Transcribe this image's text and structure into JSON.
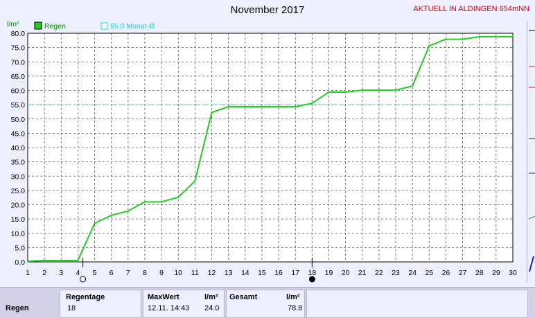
{
  "header": {
    "title": "November 2017",
    "station": "AKTUELL IN ALDINGEN 654mNN"
  },
  "chart_data": {
    "type": "line",
    "title": "November 2017",
    "ylabel": "l/m²",
    "ylim": [
      0,
      80
    ],
    "xlim": [
      1,
      30
    ],
    "grid": true,
    "legend_placement": "top-left",
    "x_ticks": [
      1,
      2,
      3,
      4,
      5,
      6,
      7,
      8,
      9,
      10,
      11,
      12,
      13,
      14,
      15,
      16,
      17,
      18,
      19,
      20,
      21,
      22,
      23,
      24,
      25,
      26,
      27,
      28,
      29,
      30
    ],
    "y_ticks": [
      "0.0",
      "5.0",
      "10.0",
      "15.0",
      "20.0",
      "25.0",
      "30.0",
      "35.0",
      "40.0",
      "45.0",
      "50.0",
      "55.0",
      "60.0",
      "65.0",
      "70.0",
      "75.0",
      "80.0"
    ],
    "series": [
      {
        "name": "Regen",
        "color": "#22cc22",
        "x": [
          1,
          2,
          3,
          4,
          5,
          6,
          7,
          8,
          9,
          10,
          11,
          12,
          13,
          14,
          15,
          16,
          17,
          18,
          19,
          20,
          21,
          22,
          23,
          24,
          25,
          26,
          27,
          28,
          29,
          30
        ],
        "values": [
          0.2,
          0.5,
          0.5,
          0.5,
          13.5,
          16.3,
          17.8,
          21.0,
          21.0,
          22.6,
          28.3,
          52.3,
          54.3,
          54.3,
          54.3,
          54.3,
          54.3,
          55.5,
          59.4,
          59.4,
          60.1,
          60.1,
          60.1,
          61.5,
          75.6,
          77.9,
          77.9,
          78.8,
          78.8,
          78.8
        ]
      }
    ],
    "reference_line": {
      "label": "55.0 Monat-Ø",
      "value": 55.0,
      "color": "#22dddd"
    },
    "moon_phases": [
      {
        "day": 4.3,
        "phase": "full"
      },
      {
        "day": 18.0,
        "phase": "new"
      }
    ]
  },
  "stats": {
    "row_label": "Regen",
    "regentage_label": "Regentage",
    "regentage_value": "18",
    "maxwert_label": "MaxWert",
    "maxwert_unit": "l/m²",
    "maxwert_time": "12.11.  14:43",
    "maxwert_value": "24.0",
    "gesamt_label": "Gesamt",
    "gesamt_unit": "l/m²",
    "gesamt_value": "78.8"
  },
  "colors": {
    "background": "#eef0ff",
    "rain_line": "#22cc22",
    "average_line": "#22dddd",
    "station_text": "#e00000"
  }
}
